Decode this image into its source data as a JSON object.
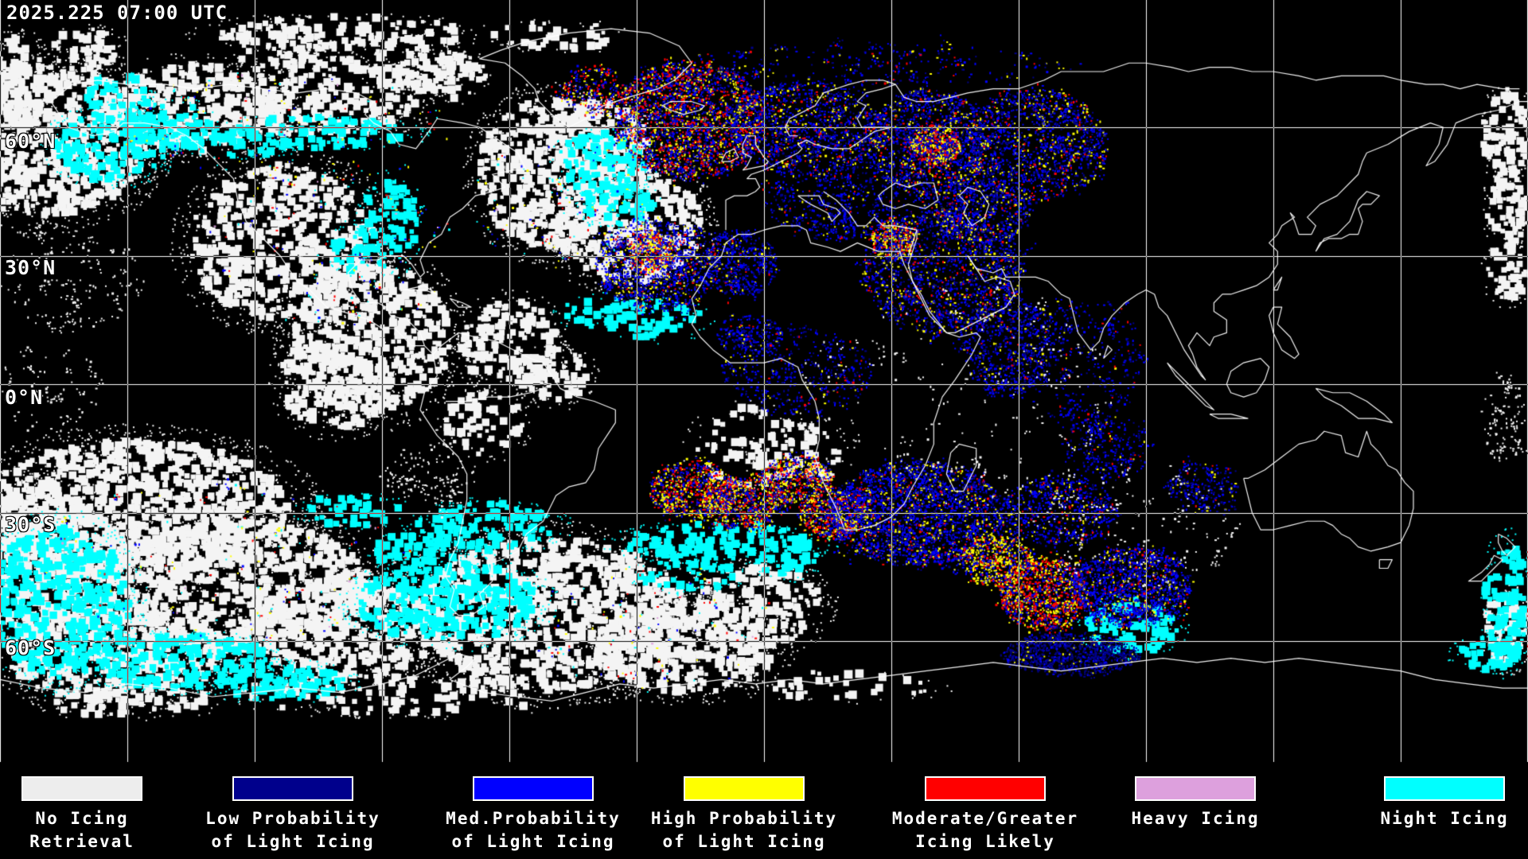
{
  "header": {
    "timestamp": "2025.225 07:00 UTC"
  },
  "map": {
    "latitude_labels": [
      {
        "label": "60°N"
      },
      {
        "label": "30°N"
      },
      {
        "label": "0°N"
      },
      {
        "label": "30°S"
      },
      {
        "label": "60°S"
      }
    ]
  },
  "legend": {
    "items": [
      {
        "id": "no-icing-retrieval",
        "color": "#ededed",
        "lines": [
          "No Icing",
          "Retrieval"
        ]
      },
      {
        "id": "low-probability-light-icing",
        "color": "#00008c",
        "lines": [
          "Low Probability",
          "of Light Icing"
        ]
      },
      {
        "id": "med-probability-light-icing",
        "color": "#0000ff",
        "lines": [
          "Med.Probability",
          "of Light Icing"
        ]
      },
      {
        "id": "high-probability-light-icing",
        "color": "#ffff00",
        "lines": [
          "High Probability",
          "of Light Icing"
        ]
      },
      {
        "id": "moderate-greater-icing",
        "color": "#ff0000",
        "lines": [
          "Moderate/Greater",
          "Icing Likely"
        ]
      },
      {
        "id": "heavy-icing",
        "color": "#dda0dd",
        "lines": [
          "Heavy Icing"
        ]
      },
      {
        "id": "night-icing",
        "color": "#00ffff",
        "lines": [
          "Night Icing"
        ]
      }
    ]
  }
}
